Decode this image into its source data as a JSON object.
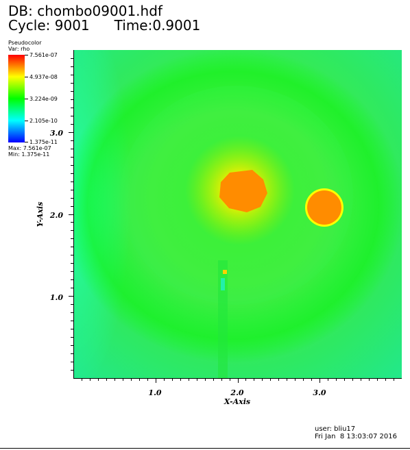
{
  "header": {
    "db_line": "DB: chombo09001.hdf",
    "cycle_line": "Cycle: 9001",
    "time_line": "Time:0.9001"
  },
  "legend": {
    "plot_type": "Pseudocolor",
    "var_line": "Var: rho",
    "ticks": [
      "7.561e-07",
      "4.937e-08",
      "3.224e-09",
      "2.105e-10",
      "1.375e-11"
    ],
    "max_line": "Max:  7.561e-07",
    "min_line": "Min:  1.375e-11",
    "colors": [
      "#ff0000",
      "#ffff00",
      "#00ff00",
      "#00ffff",
      "#0000ff"
    ]
  },
  "footer": {
    "user": "user: bliu17",
    "date": "Fri Jan  8 13:03:07 2016"
  },
  "chart_data": {
    "type": "heatmap",
    "variable": "rho",
    "xlabel": "X-Axis",
    "ylabel": "Y-Axis",
    "xlim": [
      0.0,
      4.0
    ],
    "ylim": [
      0.0,
      4.0
    ],
    "x_ticks": [
      "1.0",
      "2.0",
      "3.0"
    ],
    "y_ticks": [
      "1.0",
      "2.0",
      "3.0"
    ],
    "x_tick_values": [
      1.0,
      2.0,
      3.0
    ],
    "y_tick_values": [
      1.0,
      2.0,
      3.0
    ],
    "color_scale": "log",
    "min": 1.375e-11,
    "max": 7.561e-07,
    "background_value": 2e-09,
    "features": [
      {
        "name": "central-clump",
        "x": 2.05,
        "y": 2.3,
        "radius": 0.24,
        "value": 2e-07
      },
      {
        "name": "right-disc",
        "x": 3.05,
        "y": 2.08,
        "radius": 0.21,
        "value": 2e-07
      },
      {
        "name": "small-spot",
        "x": 1.83,
        "y": 1.3,
        "radius": 0.03,
        "value": 1e-10
      }
    ]
  }
}
